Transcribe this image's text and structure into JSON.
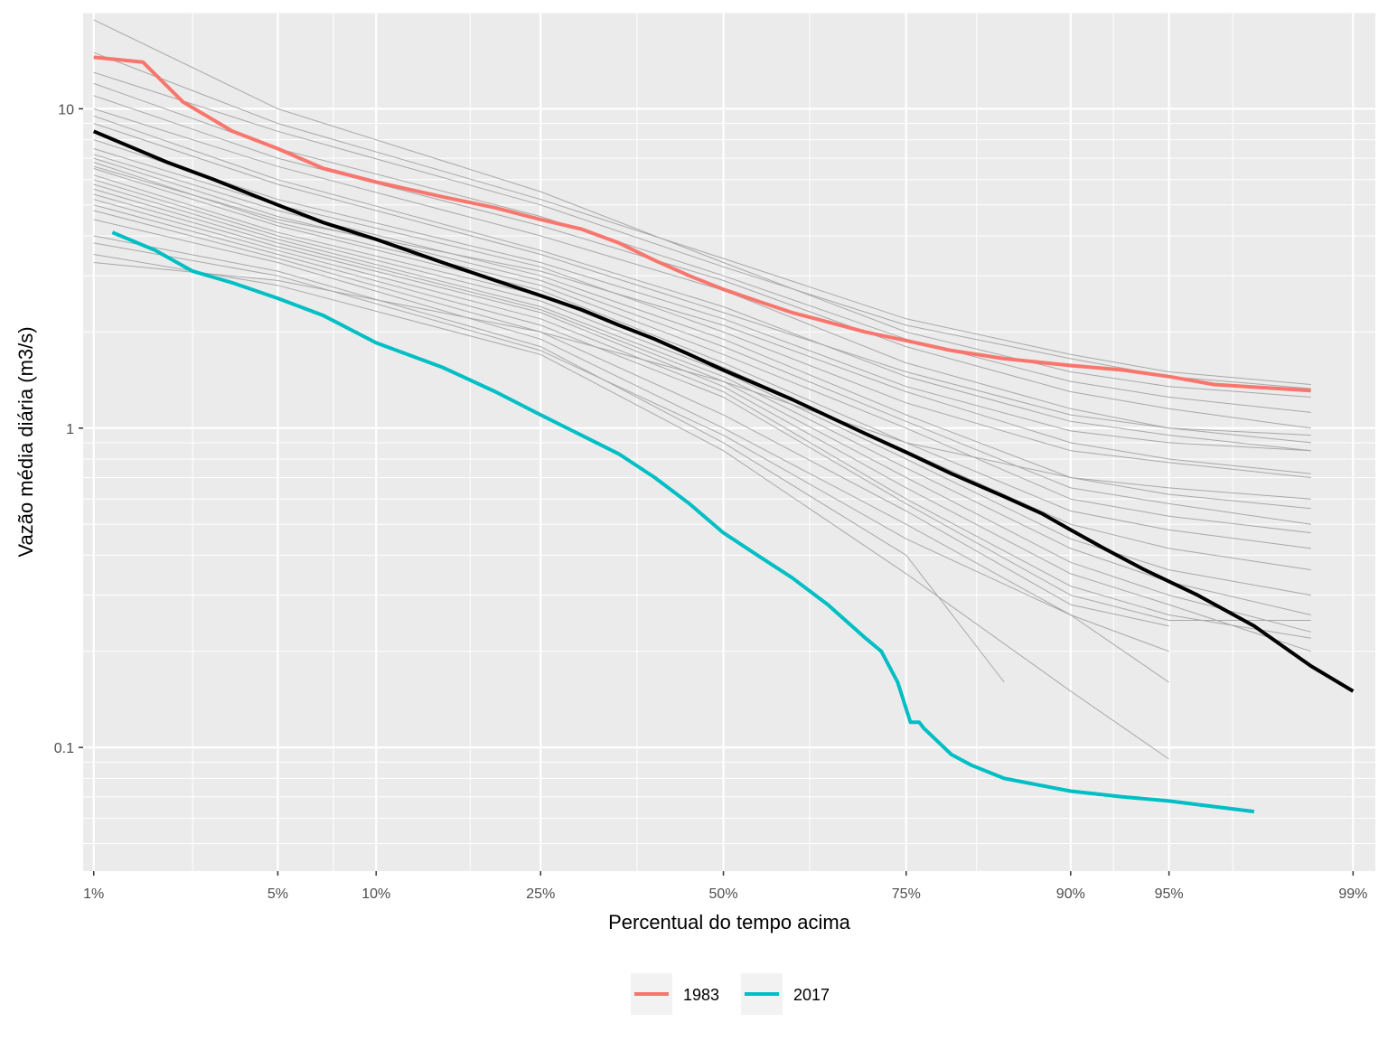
{
  "chart_data": {
    "type": "line",
    "title": "",
    "xlabel": "Percentual do tempo acima",
    "ylabel": "Vazão média diária (m3/s)",
    "x_scale": "normal-probability",
    "y_scale": "log10",
    "xlim": [
      0.9,
      99.2
    ],
    "ylim": [
      0.041,
      20.0
    ],
    "grid": true,
    "legend_position": "bottom",
    "x_ticks": [
      {
        "value": 1,
        "label": "1%"
      },
      {
        "value": 5,
        "label": "5%"
      },
      {
        "value": 10,
        "label": "10%"
      },
      {
        "value": 25,
        "label": "25%"
      },
      {
        "value": 50,
        "label": "50%"
      },
      {
        "value": 75,
        "label": "75%"
      },
      {
        "value": 90,
        "label": "90%"
      },
      {
        "value": 95,
        "label": "95%"
      },
      {
        "value": 99,
        "label": "99%"
      }
    ],
    "x_minor_grid": [
      2.5,
      7.5,
      17.5,
      37.5,
      62.5,
      82.5,
      92.5,
      97
    ],
    "y_ticks": [
      {
        "value": 0.1,
        "label": "0.1"
      },
      {
        "value": 1,
        "label": "1"
      },
      {
        "value": 10,
        "label": "10"
      }
    ],
    "y_minor_grid": [
      0.05,
      0.06,
      0.07,
      0.08,
      0.09,
      0.2,
      0.3,
      0.4,
      0.5,
      0.6,
      0.7,
      0.8,
      0.9,
      2,
      3,
      4,
      5,
      6,
      7,
      8,
      9,
      20
    ],
    "legend": [
      {
        "label": "1983",
        "color": "#F8766D"
      },
      {
        "label": "2017",
        "color": "#00BFC4"
      }
    ],
    "series": [
      {
        "name": "1983",
        "color": "#F8766D",
        "x": [
          1.0,
          1.6,
          2.3,
          3.5,
          5.0,
          7.0,
          10,
          15,
          20,
          25,
          30,
          35,
          40,
          45,
          50,
          55,
          60,
          65,
          70,
          75,
          80,
          85,
          90,
          93,
          95,
          96.5,
          98.5
        ],
        "y": [
          14.5,
          14.0,
          10.5,
          8.5,
          7.5,
          6.5,
          5.9,
          5.3,
          4.9,
          4.5,
          4.2,
          3.8,
          3.35,
          3.0,
          2.72,
          2.5,
          2.3,
          2.15,
          2.0,
          1.88,
          1.75,
          1.65,
          1.57,
          1.52,
          1.45,
          1.37,
          1.31
        ]
      },
      {
        "name": "2017",
        "color": "#00BFC4",
        "x": [
          1.2,
          1.8,
          2.5,
          3.5,
          5,
          7,
          10,
          15,
          20,
          25,
          30,
          35,
          40,
          45,
          50,
          55,
          60,
          65,
          70,
          72,
          74,
          75.5,
          76.5,
          77,
          80,
          82,
          85,
          90,
          93,
          95,
          97.5
        ],
        "y": [
          4.1,
          3.6,
          3.1,
          2.85,
          2.55,
          2.25,
          1.85,
          1.55,
          1.3,
          1.1,
          0.95,
          0.83,
          0.7,
          0.58,
          0.47,
          0.4,
          0.34,
          0.28,
          0.22,
          0.2,
          0.16,
          0.12,
          0.12,
          0.115,
          0.095,
          0.088,
          0.08,
          0.073,
          0.07,
          0.068,
          0.063
        ]
      },
      {
        "color": "#000000",
        "x": [
          1,
          2,
          3,
          5,
          7,
          10,
          15,
          20,
          25,
          30,
          35,
          40,
          45,
          50,
          55,
          60,
          65,
          70,
          75,
          80,
          85,
          88,
          90,
          92,
          94,
          96,
          97.5,
          98.5,
          99
        ],
        "y": [
          8.5,
          6.8,
          6.0,
          5.0,
          4.4,
          3.9,
          3.3,
          2.9,
          2.6,
          2.35,
          2.1,
          1.9,
          1.7,
          1.52,
          1.37,
          1.23,
          1.09,
          0.96,
          0.84,
          0.72,
          0.61,
          0.54,
          0.48,
          0.42,
          0.36,
          0.3,
          0.24,
          0.18,
          0.15
        ]
      }
    ],
    "background_series": [
      {
        "x": [
          1,
          5,
          25,
          50,
          75,
          90,
          95,
          98.5
        ],
        "y": [
          15.0,
          9.0,
          5.2,
          3.4,
          2.2,
          1.7,
          1.5,
          1.37
        ]
      },
      {
        "x": [
          1,
          5,
          25,
          50,
          75,
          90,
          95,
          98.5
        ],
        "y": [
          13.0,
          8.5,
          5.0,
          3.2,
          2.1,
          1.65,
          1.45,
          1.33
        ]
      },
      {
        "x": [
          1,
          5,
          25,
          50,
          75,
          90,
          95,
          98.5
        ],
        "y": [
          12.0,
          7.5,
          4.6,
          3.0,
          1.9,
          1.4,
          1.25,
          1.12
        ]
      },
      {
        "x": [
          1,
          5,
          25,
          50,
          75,
          90,
          95,
          98.5
        ],
        "y": [
          11.0,
          7.0,
          4.3,
          2.9,
          1.8,
          1.3,
          1.15,
          1.0
        ]
      },
      {
        "x": [
          1,
          5,
          25,
          50,
          75,
          90,
          95,
          98.5
        ],
        "y": [
          10.0,
          6.6,
          4.0,
          2.7,
          1.6,
          1.15,
          1.0,
          0.9
        ]
      },
      {
        "x": [
          1,
          5,
          25,
          50,
          75,
          90,
          95,
          98.5
        ],
        "y": [
          9.5,
          6.0,
          3.6,
          2.4,
          1.45,
          1.05,
          0.95,
          0.85
        ]
      },
      {
        "x": [
          1,
          5,
          25,
          50,
          75,
          90,
          95,
          98.5
        ],
        "y": [
          8.0,
          5.2,
          3.3,
          2.2,
          1.35,
          0.98,
          0.9,
          0.85
        ]
      },
      {
        "x": [
          1,
          5,
          25,
          50,
          75,
          90,
          95,
          98.5
        ],
        "y": [
          7.5,
          5.0,
          3.2,
          2.0,
          1.2,
          0.85,
          0.78,
          0.7
        ]
      },
      {
        "x": [
          1,
          5,
          25,
          50,
          75,
          90,
          95,
          98.5
        ],
        "y": [
          7.2,
          4.8,
          3.0,
          1.9,
          1.1,
          0.7,
          0.62,
          0.56
        ]
      },
      {
        "x": [
          1,
          5,
          25,
          50,
          75,
          90,
          95,
          98.5
        ],
        "y": [
          7.0,
          4.6,
          2.9,
          1.8,
          1.05,
          0.65,
          0.58,
          0.5
        ]
      },
      {
        "x": [
          1,
          5,
          25,
          50,
          75,
          90,
          95,
          98.5
        ],
        "y": [
          6.8,
          4.4,
          2.8,
          1.7,
          1.0,
          0.6,
          0.53,
          0.47
        ]
      },
      {
        "x": [
          1,
          5,
          25,
          50,
          75,
          90,
          95,
          98.5
        ],
        "y": [
          6.5,
          4.3,
          2.7,
          1.6,
          0.9,
          0.55,
          0.48,
          0.42
        ]
      },
      {
        "x": [
          1,
          5,
          25,
          50,
          75,
          90,
          95,
          98.5
        ],
        "y": [
          6.2,
          4.1,
          2.6,
          1.55,
          0.85,
          0.5,
          0.42,
          0.36
        ]
      },
      {
        "x": [
          1,
          5,
          25,
          50,
          75,
          90,
          95,
          98.5
        ],
        "y": [
          6.0,
          4.0,
          2.5,
          1.5,
          0.8,
          0.45,
          0.36,
          0.3
        ]
      },
      {
        "x": [
          1,
          5,
          25,
          50,
          75,
          90,
          95,
          98.5
        ],
        "y": [
          5.8,
          3.9,
          2.4,
          1.45,
          0.75,
          0.42,
          0.33,
          0.26
        ]
      },
      {
        "x": [
          1,
          5,
          25,
          50,
          75,
          90,
          95,
          98.5
        ],
        "y": [
          5.6,
          3.8,
          2.35,
          1.4,
          0.7,
          0.38,
          0.3,
          0.23
        ]
      },
      {
        "x": [
          1,
          5,
          25,
          50,
          75,
          90,
          95,
          98.5
        ],
        "y": [
          5.4,
          3.7,
          2.3,
          1.35,
          0.65,
          0.35,
          0.28,
          0.2
        ]
      },
      {
        "x": [
          1,
          5,
          25,
          50,
          75,
          90,
          95,
          98.5
        ],
        "y": [
          5.2,
          3.6,
          2.2,
          1.3,
          0.6,
          0.32,
          0.26,
          0.22
        ]
      },
      {
        "x": [
          1,
          5,
          25,
          50,
          75,
          90,
          95,
          98.5
        ],
        "y": [
          5.0,
          3.5,
          2.1,
          1.25,
          0.58,
          0.3,
          0.25,
          0.25
        ]
      },
      {
        "x": [
          1,
          5,
          25,
          50,
          75,
          90,
          95
        ],
        "y": [
          4.8,
          3.4,
          2.0,
          1.1,
          0.55,
          0.28,
          0.24
        ]
      },
      {
        "x": [
          1,
          5,
          25,
          50,
          75,
          90,
          95
        ],
        "y": [
          4.5,
          3.3,
          1.9,
          1.0,
          0.5,
          0.26,
          0.2
        ]
      },
      {
        "x": [
          1,
          5,
          25,
          50,
          75,
          85
        ],
        "y": [
          4.0,
          3.1,
          1.8,
          0.9,
          0.4,
          0.16
        ]
      },
      {
        "x": [
          1,
          5,
          25,
          50,
          75,
          90,
          95
        ],
        "y": [
          3.8,
          3.0,
          1.75,
          0.95,
          0.45,
          0.26,
          0.16
        ]
      },
      {
        "x": [
          1,
          5,
          25,
          50,
          75,
          90,
          95
        ],
        "y": [
          3.5,
          2.8,
          1.7,
          0.85,
          0.35,
          0.15,
          0.092
        ]
      },
      {
        "x": [
          1,
          5,
          25,
          50,
          75,
          90,
          95,
          98.5
        ],
        "y": [
          3.3,
          2.9,
          2.0,
          1.4,
          0.9,
          0.7,
          0.65,
          0.6
        ]
      },
      {
        "x": [
          1,
          5,
          25,
          50,
          75,
          90,
          95,
          98.5
        ],
        "y": [
          9.0,
          5.8,
          3.5,
          2.3,
          1.5,
          1.1,
          1.0,
          0.95
        ]
      },
      {
        "x": [
          1,
          5,
          25,
          50,
          75,
          90,
          95,
          98.5
        ],
        "y": [
          6.6,
          4.5,
          3.1,
          2.1,
          1.3,
          0.9,
          0.8,
          0.72
        ]
      },
      {
        "x": [
          1,
          5,
          25,
          50,
          75,
          90,
          95,
          98.5
        ],
        "y": [
          19.0,
          10.0,
          5.5,
          3.3,
          2.0,
          1.5,
          1.35,
          1.25
        ]
      }
    ]
  }
}
